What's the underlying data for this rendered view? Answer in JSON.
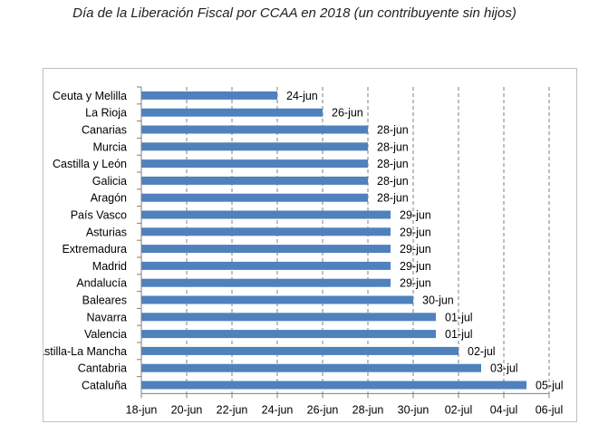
{
  "chart_data": {
    "type": "bar",
    "orientation": "horizontal",
    "title": "Día de la Liberación Fiscal por CCAA en 2018 (un contribuyente sin hijos)",
    "categories": [
      "Ceuta y Melilla",
      "La Rioja",
      "Canarias",
      "Murcia",
      "Castilla y León",
      "Galicia",
      "Aragón",
      "País Vasco",
      "Asturias",
      "Extremadura",
      "Madrid",
      "Andalucía",
      "Baleares",
      "Navarra",
      "Valencia",
      "Castilla-La Mancha",
      "Cantabria",
      "Cataluña"
    ],
    "values": [
      "2018-06-24",
      "2018-06-26",
      "2018-06-28",
      "2018-06-28",
      "2018-06-28",
      "2018-06-28",
      "2018-06-28",
      "2018-06-29",
      "2018-06-29",
      "2018-06-29",
      "2018-06-29",
      "2018-06-29",
      "2018-06-30",
      "2018-07-01",
      "2018-07-01",
      "2018-07-02",
      "2018-07-03",
      "2018-07-05"
    ],
    "data_labels": [
      "24-jun",
      "26-jun",
      "28-jun",
      "28-jun",
      "28-jun",
      "28-jun",
      "28-jun",
      "29-jun",
      "29-jun",
      "29-jun",
      "29-jun",
      "29-jun",
      "30-jun",
      "01-jul",
      "01-jul",
      "02-jul",
      "03-jul",
      "05-jul"
    ],
    "xlim": [
      "2018-06-18",
      "2018-07-06"
    ],
    "xticks": [
      "2018-06-18",
      "2018-06-20",
      "2018-06-22",
      "2018-06-24",
      "2018-06-26",
      "2018-06-28",
      "2018-06-30",
      "2018-07-02",
      "2018-07-04",
      "2018-07-06"
    ],
    "xtick_labels": [
      "18-jun",
      "20-jun",
      "22-jun",
      "24-jun",
      "26-jun",
      "28-jun",
      "30-jun",
      "02-jul",
      "04-jul",
      "06-jul"
    ],
    "grid": "vertical",
    "legend": "none",
    "colors": {
      "bar": "#4f81bd",
      "grid": "#7f7f7f",
      "axis": "#7f7f7f"
    }
  }
}
